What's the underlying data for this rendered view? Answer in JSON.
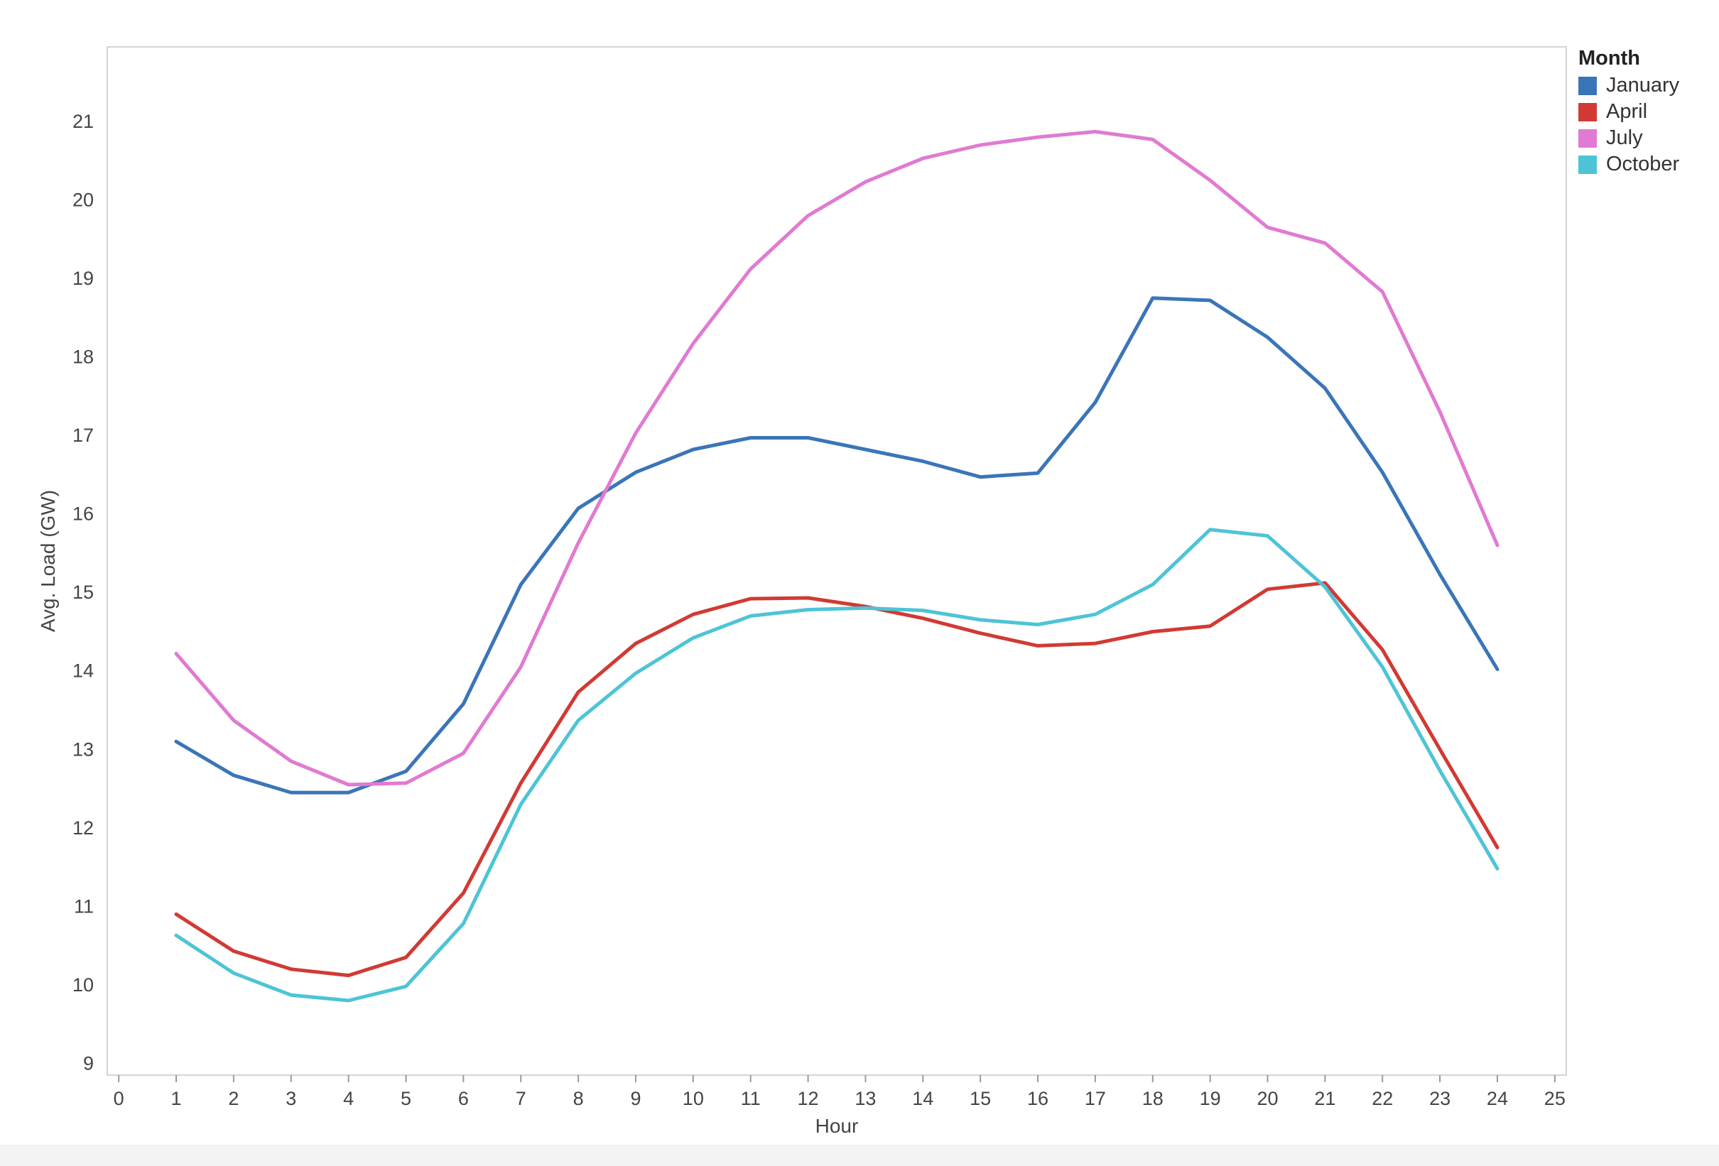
{
  "chart_data": {
    "type": "line",
    "title": "",
    "xlabel": "Hour",
    "ylabel": "Avg. Load (GW)",
    "xlim": [
      -0.2,
      25.2
    ],
    "ylim": [
      8.85,
      21.95
    ],
    "xticks": [
      0,
      1,
      2,
      3,
      4,
      5,
      6,
      7,
      8,
      9,
      10,
      11,
      12,
      13,
      14,
      15,
      16,
      17,
      18,
      19,
      20,
      21,
      22,
      23,
      24,
      25
    ],
    "yticks": [
      9,
      10,
      11,
      12,
      13,
      14,
      15,
      16,
      17,
      18,
      19,
      20,
      21
    ],
    "grid": false,
    "legend_placement": "top-right (outside plot)",
    "legend_title": "Month",
    "x": [
      1,
      2,
      3,
      4,
      5,
      6,
      7,
      8,
      9,
      10,
      11,
      12,
      13,
      14,
      15,
      16,
      17,
      18,
      19,
      20,
      21,
      22,
      23,
      24
    ],
    "series": [
      {
        "name": "January",
        "color": "#3a75b8",
        "values": [
          13.1,
          12.67,
          12.45,
          12.45,
          12.72,
          13.58,
          15.1,
          16.07,
          16.53,
          16.82,
          16.97,
          16.97,
          16.82,
          16.67,
          16.47,
          16.52,
          17.42,
          18.75,
          18.72,
          18.25,
          17.6,
          16.53,
          15.23,
          14.02
        ]
      },
      {
        "name": "April",
        "color": "#d13a34",
        "values": [
          10.9,
          10.43,
          10.2,
          10.12,
          10.35,
          11.17,
          12.57,
          13.73,
          14.35,
          14.72,
          14.92,
          14.93,
          14.82,
          14.67,
          14.48,
          14.32,
          14.35,
          14.5,
          14.57,
          15.04,
          15.12,
          14.27,
          13.0,
          11.75
        ]
      },
      {
        "name": "July",
        "color": "#e07ad2",
        "values": [
          14.22,
          13.37,
          12.85,
          12.55,
          12.57,
          12.95,
          14.05,
          15.63,
          17.03,
          18.17,
          19.12,
          19.8,
          20.23,
          20.53,
          20.7,
          20.8,
          20.87,
          20.77,
          20.25,
          19.65,
          19.45,
          18.83,
          17.3,
          15.6
        ]
      },
      {
        "name": "October",
        "color": "#4dc4d6",
        "values": [
          10.63,
          10.15,
          9.87,
          9.8,
          9.98,
          10.78,
          12.3,
          13.37,
          13.97,
          14.42,
          14.7,
          14.78,
          14.8,
          14.77,
          14.65,
          14.59,
          14.72,
          15.1,
          15.8,
          15.72,
          15.07,
          14.05,
          12.73,
          11.48
        ]
      }
    ]
  }
}
